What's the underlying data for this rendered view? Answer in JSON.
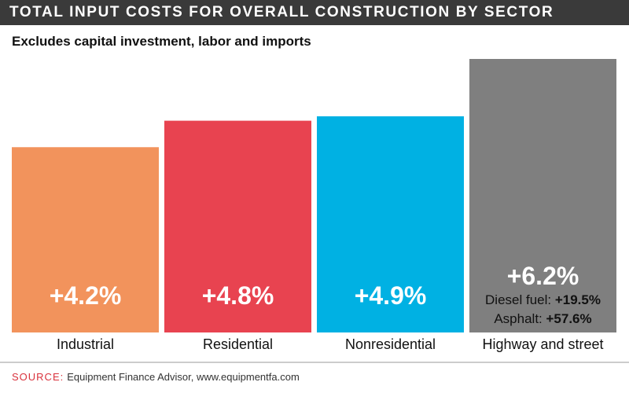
{
  "title": "TOTAL INPUT COSTS FOR OVERALL CONSTRUCTION BY SECTOR",
  "subtitle": "Excludes capital investment, labor and imports",
  "source": {
    "label": "SOURCE:",
    "text": "Equipment Finance Advisor, www.equipmentfa.com"
  },
  "colors": {
    "industrial": "#f2935c",
    "residential": "#e84350",
    "nonresidential": "#00b1e3",
    "highway": "#7f7f7f",
    "title_bar": "#3a3a3a",
    "source_label": "#d9313c"
  },
  "chart_data": {
    "type": "bar",
    "title": "TOTAL INPUT COSTS FOR OVERALL CONSTRUCTION BY SECTOR",
    "subtitle": "Excludes capital investment, labor and imports",
    "categories": [
      "Industrial",
      "Residential",
      "Nonresidential",
      "Highway and street"
    ],
    "values": [
      4.2,
      4.8,
      4.9,
      6.2
    ],
    "value_labels": [
      "+4.2%",
      "+4.8%",
      "+4.9%",
      "+6.2%"
    ],
    "bar_colors": [
      "#f2935c",
      "#e84350",
      "#00b1e3",
      "#7f7f7f"
    ],
    "annotations": [
      {
        "category": "Highway and street",
        "label": "Diesel fuel:",
        "value": "+19.5%"
      },
      {
        "category": "Highway and street",
        "label": "Asphalt:",
        "value": "+57.6%"
      }
    ],
    "xlabel": "",
    "ylabel": "",
    "ylim": [
      0,
      6.2
    ],
    "grid": false,
    "legend": "none"
  }
}
